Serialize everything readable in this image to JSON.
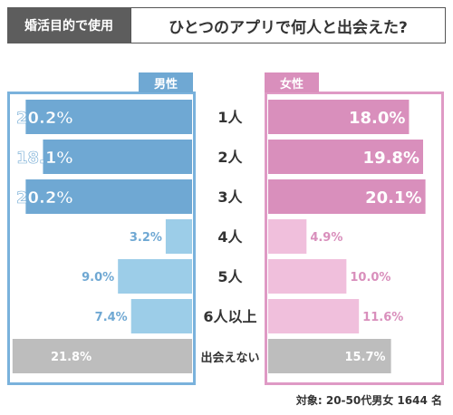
{
  "header": {
    "tag": "婚活目的で使用",
    "headline": "ひとつのアプリで何人と出会えた?"
  },
  "legend": {
    "male": "男性",
    "female": "女性"
  },
  "footnote": "対象: 20-50代男女 1644 名",
  "colors": {
    "male_dark": "#6fa8d3",
    "male_light": "#9ccde8",
    "female_dark": "#d98fbc",
    "female_light": "#f0bfdc",
    "none": "#bdbdbd"
  },
  "chart_data": {
    "type": "bar",
    "categories": [
      "1人",
      "2人",
      "3人",
      "4人",
      "5人",
      "6人以上",
      "出会えない"
    ],
    "series": [
      {
        "name": "男性",
        "values": [
          20.2,
          18.1,
          20.2,
          3.2,
          9.0,
          7.4,
          21.8
        ]
      },
      {
        "name": "女性",
        "values": [
          18.0,
          19.8,
          20.1,
          4.9,
          10.0,
          11.6,
          15.7
        ]
      }
    ],
    "value_labels": {
      "男性": [
        "20.2%",
        "18.1%",
        "20.2%",
        "3.2%",
        "9.0%",
        "7.4%",
        "21.8%"
      ],
      "女性": [
        "18.0%",
        "19.8%",
        "20.1%",
        "4.9%",
        "10.0%",
        "11.6%",
        "15.7%"
      ]
    },
    "xlim": [
      0,
      22
    ]
  }
}
